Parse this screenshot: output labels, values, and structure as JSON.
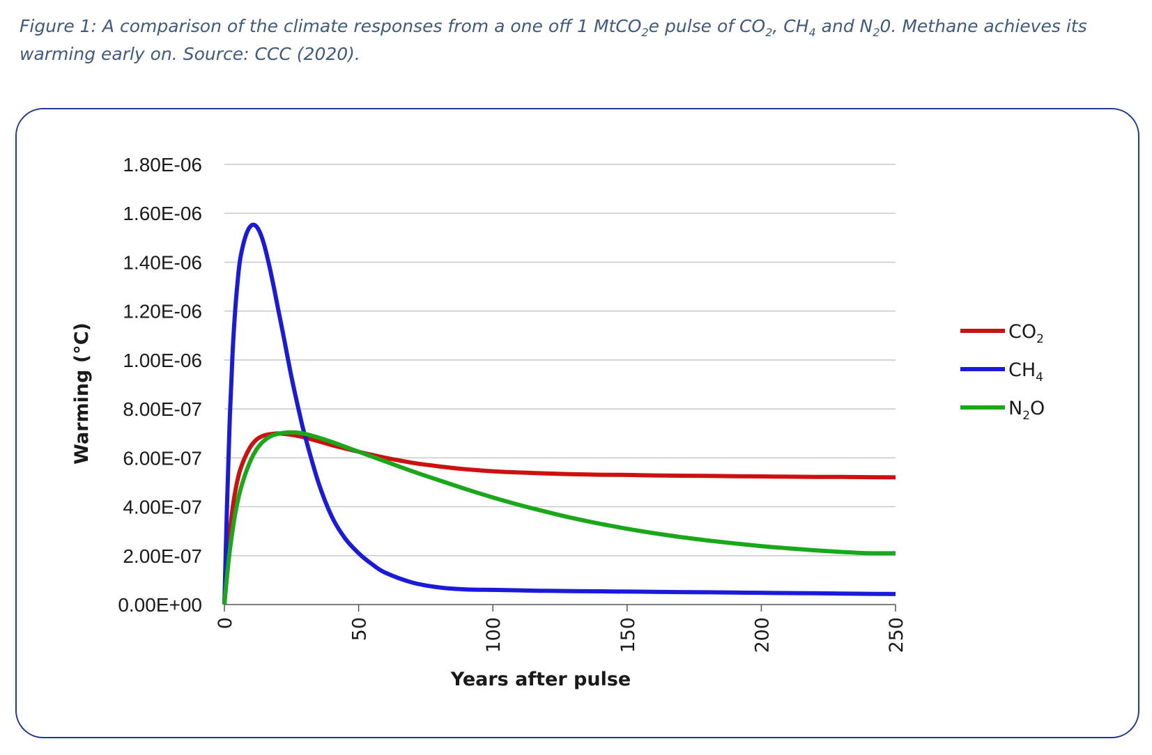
{
  "caption": {
    "lines": [
      [
        "Figure 1: A comparison of the climate responses from a one off 1 MtCO",
        {
          "sub": "2"
        },
        "e pulse of CO",
        {
          "sub": "2"
        },
        ", CH",
        {
          "sub": "4"
        },
        " and N",
        {
          "sub": "2"
        },
        "0. Methane achieves its"
      ],
      [
        "warming early on. Source: CCC (2020)."
      ]
    ]
  },
  "chart_data": {
    "type": "line",
    "title": "",
    "xlabel": "Years after pulse",
    "ylabel": "Warming (°C)",
    "xlim": [
      0,
      250
    ],
    "ylim": [
      0,
      1.8e-06
    ],
    "x_ticks": [
      0,
      50,
      100,
      150,
      200,
      250
    ],
    "x_tick_labels": [
      "0",
      "50",
      "100",
      "150",
      "200",
      "250"
    ],
    "y_ticks": [
      0,
      2e-07,
      4e-07,
      6e-07,
      8e-07,
      1e-06,
      1.2e-06,
      1.4e-06,
      1.6e-06,
      1.8e-06
    ],
    "y_tick_labels": [
      "0.00E+00",
      "2.00E-07",
      "4.00E-07",
      "6.00E-07",
      "8.00E-07",
      "1.00E-06",
      "1.20E-06",
      "1.40E-06",
      "1.60E-06",
      "1.80E-06"
    ],
    "grid": true,
    "legend_position": "right",
    "x": [
      0,
      1,
      2,
      3,
      4,
      5,
      6,
      8,
      10,
      12,
      14,
      16,
      18,
      20,
      22,
      25,
      28,
      30,
      35,
      40,
      45,
      50,
      55,
      60,
      70,
      80,
      90,
      100,
      110,
      120,
      130,
      140,
      150,
      160,
      170,
      180,
      190,
      200,
      210,
      220,
      230,
      240,
      250
    ],
    "series": [
      {
        "name": "CO",
        "name_sub": "2",
        "color": "#cc1111",
        "values": [
          0,
          1.6e-07,
          2.9e-07,
          3.9e-07,
          4.6e-07,
          5.15e-07,
          5.55e-07,
          6.1e-07,
          6.5e-07,
          6.75e-07,
          6.88e-07,
          6.95e-07,
          6.98e-07,
          7e-07,
          6.98e-07,
          6.94e-07,
          6.88e-07,
          6.83e-07,
          6.68e-07,
          6.52e-07,
          6.38e-07,
          6.25e-07,
          6.12e-07,
          6e-07,
          5.8e-07,
          5.65e-07,
          5.53e-07,
          5.45e-07,
          5.4e-07,
          5.36e-07,
          5.33e-07,
          5.31e-07,
          5.3e-07,
          5.28e-07,
          5.27e-07,
          5.26e-07,
          5.25e-07,
          5.24e-07,
          5.23e-07,
          5.22e-07,
          5.22e-07,
          5.21e-07,
          5.2e-07
        ]
      },
      {
        "name": "CH",
        "name_sub": "4",
        "color": "#1a1adb",
        "values": [
          0,
          4.2e-07,
          7.6e-07,
          1.02e-06,
          1.2e-06,
          1.33e-06,
          1.42e-06,
          1.51e-06,
          1.55e-06,
          1.545e-06,
          1.5e-06,
          1.42e-06,
          1.32e-06,
          1.21e-06,
          1.1e-06,
          9.3e-07,
          7.8e-07,
          6.9e-07,
          5e-07,
          3.6e-07,
          2.7e-07,
          2.1e-07,
          1.65e-07,
          1.3e-07,
          9e-08,
          7e-08,
          6.2e-08,
          6e-08,
          5.8e-08,
          5.6e-08,
          5.5e-08,
          5.4e-08,
          5.3e-08,
          5.2e-08,
          5.1e-08,
          5e-08,
          4.9e-08,
          4.8e-08,
          4.7e-08,
          4.6e-08,
          4.5e-08,
          4.4e-08,
          4.3e-08
        ]
      },
      {
        "name": "N",
        "name_sub": "2",
        "name_suffix": "O",
        "color": "#1aa81a",
        "values": [
          0,
          1.2e-07,
          2.2e-07,
          3e-07,
          3.7e-07,
          4.25e-07,
          4.7e-07,
          5.4e-07,
          5.95e-07,
          6.35e-07,
          6.62e-07,
          6.8e-07,
          6.92e-07,
          6.98e-07,
          7.02e-07,
          7.04e-07,
          7.02e-07,
          6.98e-07,
          6.83e-07,
          6.65e-07,
          6.45e-07,
          6.25e-07,
          6.05e-07,
          5.85e-07,
          5.45e-07,
          5.08e-07,
          4.72e-07,
          4.38e-07,
          4.07e-07,
          3.79e-07,
          3.53e-07,
          3.3e-07,
          3.1e-07,
          2.92e-07,
          2.76e-07,
          2.62e-07,
          2.5e-07,
          2.39e-07,
          2.3e-07,
          2.22e-07,
          2.15e-07,
          2.1e-07,
          2.1e-07
        ]
      }
    ]
  }
}
